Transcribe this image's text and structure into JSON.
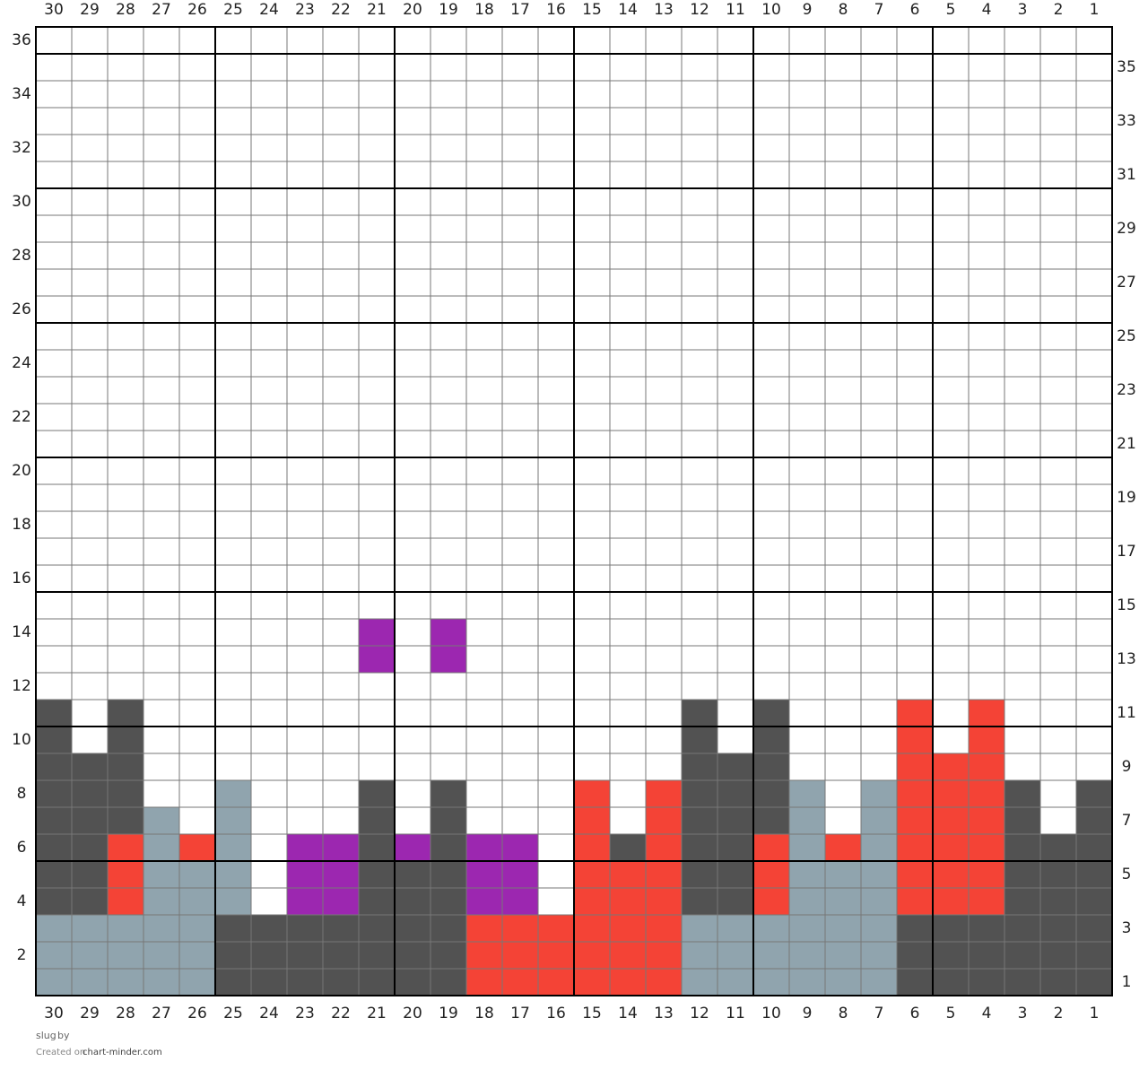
{
  "grid": {
    "columns": [
      30,
      29,
      28,
      27,
      26,
      25,
      24,
      23,
      22,
      21,
      20,
      19,
      18,
      17,
      16,
      15,
      14,
      13,
      12,
      11,
      10,
      9,
      8,
      7,
      6,
      5,
      4,
      3,
      2,
      1
    ],
    "rows": [
      36,
      35,
      34,
      33,
      32,
      31,
      30,
      29,
      28,
      27,
      26,
      25,
      24,
      23,
      22,
      21,
      20,
      19,
      18,
      17,
      16,
      15,
      14,
      13,
      12,
      11,
      10,
      9,
      8,
      7,
      6,
      5,
      4,
      3,
      2,
      1
    ],
    "left_labels": [
      36,
      34,
      32,
      30,
      28,
      26,
      24,
      22,
      20,
      18,
      16,
      14,
      12,
      10,
      8,
      6,
      4,
      2
    ],
    "right_labels": [
      35,
      33,
      31,
      29,
      27,
      25,
      23,
      21,
      19,
      17,
      15,
      13,
      11,
      9,
      7,
      5,
      3,
      1
    ],
    "background": "#ffffff",
    "colored_rows_from_bottom": [
      [
        "#90a4ae",
        "#90a4ae",
        "#90a4ae",
        "#90a4ae",
        "#90a4ae",
        "#525252",
        "#525252",
        "#525252",
        "#525252",
        "#525252",
        "#525252",
        "#525252",
        "#f44336",
        "#f44336",
        "#f44336",
        "#f44336",
        "#f44336",
        "#f44336",
        "#90a4ae",
        "#90a4ae",
        "#90a4ae",
        "#90a4ae",
        "#90a4ae",
        "#90a4ae",
        "#525252",
        "#525252",
        "#525252",
        "#525252",
        "#525252",
        "#525252"
      ],
      [
        "#90a4ae",
        "#90a4ae",
        "#90a4ae",
        "#90a4ae",
        "#90a4ae",
        "#525252",
        "#525252",
        "#525252",
        "#525252",
        "#525252",
        "#525252",
        "#525252",
        "#f44336",
        "#f44336",
        "#f44336",
        "#f44336",
        "#f44336",
        "#f44336",
        "#90a4ae",
        "#90a4ae",
        "#90a4ae",
        "#90a4ae",
        "#90a4ae",
        "#90a4ae",
        "#525252",
        "#525252",
        "#525252",
        "#525252",
        "#525252",
        "#525252"
      ],
      [
        "#90a4ae",
        "#90a4ae",
        "#90a4ae",
        "#90a4ae",
        "#90a4ae",
        "#525252",
        "#525252",
        "#525252",
        "#525252",
        "#525252",
        "#525252",
        "#525252",
        "#f44336",
        "#f44336",
        "#f44336",
        "#f44336",
        "#f44336",
        "#f44336",
        "#90a4ae",
        "#90a4ae",
        "#90a4ae",
        "#90a4ae",
        "#90a4ae",
        "#90a4ae",
        "#525252",
        "#525252",
        "#525252",
        "#525252",
        "#525252",
        "#525252"
      ],
      [
        "#525252",
        "#525252",
        "#f44336",
        "#90a4ae",
        "#90a4ae",
        "#90a4ae",
        "#ffffff",
        "#9c27b0",
        "#9c27b0",
        "#525252",
        "#525252",
        "#525252",
        "#9c27b0",
        "#9c27b0",
        "#ffffff",
        "#f44336",
        "#f44336",
        "#f44336",
        "#525252",
        "#525252",
        "#f44336",
        "#90a4ae",
        "#90a4ae",
        "#90a4ae",
        "#f44336",
        "#f44336",
        "#f44336",
        "#525252",
        "#525252",
        "#525252"
      ],
      [
        "#525252",
        "#525252",
        "#f44336",
        "#90a4ae",
        "#90a4ae",
        "#90a4ae",
        "#ffffff",
        "#9c27b0",
        "#9c27b0",
        "#525252",
        "#525252",
        "#525252",
        "#9c27b0",
        "#9c27b0",
        "#ffffff",
        "#f44336",
        "#f44336",
        "#f44336",
        "#525252",
        "#525252",
        "#f44336",
        "#90a4ae",
        "#90a4ae",
        "#90a4ae",
        "#f44336",
        "#f44336",
        "#f44336",
        "#525252",
        "#525252",
        "#525252"
      ],
      [
        "#525252",
        "#525252",
        "#f44336",
        "#90a4ae",
        "#f44336",
        "#90a4ae",
        "#ffffff",
        "#9c27b0",
        "#9c27b0",
        "#525252",
        "#9c27b0",
        "#525252",
        "#9c27b0",
        "#9c27b0",
        "#ffffff",
        "#f44336",
        "#525252",
        "#f44336",
        "#525252",
        "#525252",
        "#f44336",
        "#90a4ae",
        "#f44336",
        "#90a4ae",
        "#f44336",
        "#f44336",
        "#f44336",
        "#525252",
        "#525252",
        "#525252"
      ],
      [
        "#525252",
        "#525252",
        "#525252",
        "#90a4ae",
        "#ffffff",
        "#90a4ae",
        "#ffffff",
        "#ffffff",
        "#ffffff",
        "#525252",
        "#ffffff",
        "#525252",
        "#ffffff",
        "#ffffff",
        "#ffffff",
        "#f44336",
        "#ffffff",
        "#f44336",
        "#525252",
        "#525252",
        "#525252",
        "#90a4ae",
        "#ffffff",
        "#90a4ae",
        "#f44336",
        "#f44336",
        "#f44336",
        "#525252",
        "#ffffff",
        "#525252"
      ],
      [
        "#525252",
        "#525252",
        "#525252",
        "#ffffff",
        "#ffffff",
        "#90a4ae",
        "#ffffff",
        "#ffffff",
        "#ffffff",
        "#525252",
        "#ffffff",
        "#525252",
        "#ffffff",
        "#ffffff",
        "#ffffff",
        "#f44336",
        "#ffffff",
        "#f44336",
        "#525252",
        "#525252",
        "#525252",
        "#90a4ae",
        "#ffffff",
        "#90a4ae",
        "#f44336",
        "#f44336",
        "#f44336",
        "#525252",
        "#ffffff",
        "#525252"
      ],
      [
        "#525252",
        "#525252",
        "#525252",
        "#ffffff",
        "#ffffff",
        "#ffffff",
        "#ffffff",
        "#ffffff",
        "#ffffff",
        "#ffffff",
        "#ffffff",
        "#ffffff",
        "#ffffff",
        "#ffffff",
        "#ffffff",
        "#ffffff",
        "#ffffff",
        "#ffffff",
        "#525252",
        "#525252",
        "#525252",
        "#ffffff",
        "#ffffff",
        "#ffffff",
        "#f44336",
        "#f44336",
        "#f44336",
        "#ffffff",
        "#ffffff",
        "#ffffff"
      ],
      [
        "#525252",
        "#ffffff",
        "#525252",
        "#ffffff",
        "#ffffff",
        "#ffffff",
        "#ffffff",
        "#ffffff",
        "#ffffff",
        "#ffffff",
        "#ffffff",
        "#ffffff",
        "#ffffff",
        "#ffffff",
        "#ffffff",
        "#ffffff",
        "#ffffff",
        "#ffffff",
        "#525252",
        "#ffffff",
        "#525252",
        "#ffffff",
        "#ffffff",
        "#ffffff",
        "#f44336",
        "#ffffff",
        "#f44336",
        "#ffffff",
        "#ffffff",
        "#ffffff"
      ],
      [
        "#525252",
        "#ffffff",
        "#525252",
        "#ffffff",
        "#ffffff",
        "#ffffff",
        "#ffffff",
        "#ffffff",
        "#ffffff",
        "#ffffff",
        "#ffffff",
        "#ffffff",
        "#ffffff",
        "#ffffff",
        "#ffffff",
        "#ffffff",
        "#ffffff",
        "#ffffff",
        "#525252",
        "#ffffff",
        "#525252",
        "#ffffff",
        "#ffffff",
        "#ffffff",
        "#f44336",
        "#ffffff",
        "#f44336",
        "#ffffff",
        "#ffffff",
        "#ffffff"
      ],
      [
        "#ffffff",
        "#ffffff",
        "#ffffff",
        "#ffffff",
        "#ffffff",
        "#ffffff",
        "#ffffff",
        "#ffffff",
        "#ffffff",
        "#ffffff",
        "#ffffff",
        "#ffffff",
        "#ffffff",
        "#ffffff",
        "#ffffff",
        "#ffffff",
        "#ffffff",
        "#ffffff",
        "#ffffff",
        "#ffffff",
        "#ffffff",
        "#ffffff",
        "#ffffff",
        "#ffffff",
        "#ffffff",
        "#ffffff",
        "#ffffff",
        "#ffffff",
        "#ffffff",
        "#ffffff"
      ],
      [
        "#ffffff",
        "#ffffff",
        "#ffffff",
        "#ffffff",
        "#ffffff",
        "#ffffff",
        "#ffffff",
        "#ffffff",
        "#ffffff",
        "#9c27b0",
        "#ffffff",
        "#9c27b0",
        "#ffffff",
        "#ffffff",
        "#ffffff",
        "#ffffff",
        "#ffffff",
        "#ffffff",
        "#ffffff",
        "#ffffff",
        "#ffffff",
        "#ffffff",
        "#ffffff",
        "#ffffff",
        "#ffffff",
        "#ffffff",
        "#ffffff",
        "#ffffff",
        "#ffffff",
        "#ffffff"
      ],
      [
        "#ffffff",
        "#ffffff",
        "#ffffff",
        "#ffffff",
        "#ffffff",
        "#ffffff",
        "#ffffff",
        "#ffffff",
        "#ffffff",
        "#9c27b0",
        "#ffffff",
        "#9c27b0",
        "#ffffff",
        "#ffffff",
        "#ffffff",
        "#ffffff",
        "#ffffff",
        "#ffffff",
        "#ffffff",
        "#ffffff",
        "#ffffff",
        "#ffffff",
        "#ffffff",
        "#ffffff",
        "#ffffff",
        "#ffffff",
        "#ffffff",
        "#ffffff",
        "#ffffff",
        "#ffffff"
      ]
    ]
  },
  "footer": {
    "title": "slug",
    "by": "by",
    "created_on": "Created on",
    "site": "chart-minder.com"
  }
}
